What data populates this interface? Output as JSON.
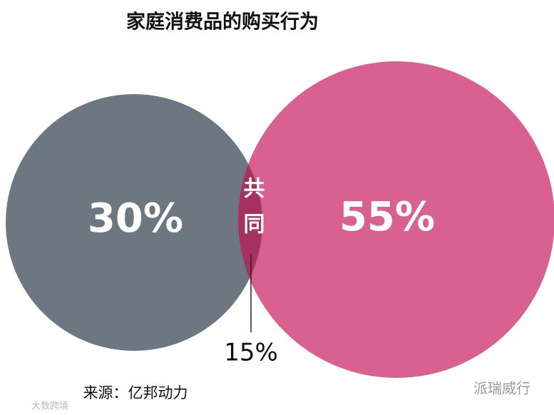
{
  "chart_data": {
    "type": "venn",
    "title": "家庭消费品的购买行为",
    "sets": [
      "",
      ""
    ],
    "values": [
      30,
      55,
      15
    ],
    "value_labels": [
      "30%",
      "55%",
      "15%"
    ],
    "intersection_label": "共同",
    "colors": [
      "#6d7782",
      "#d9618f",
      "#a5315f"
    ],
    "source": "来源：亿邦动力",
    "watermark": "派瑞威行",
    "corner_mark": "大数跨境"
  }
}
